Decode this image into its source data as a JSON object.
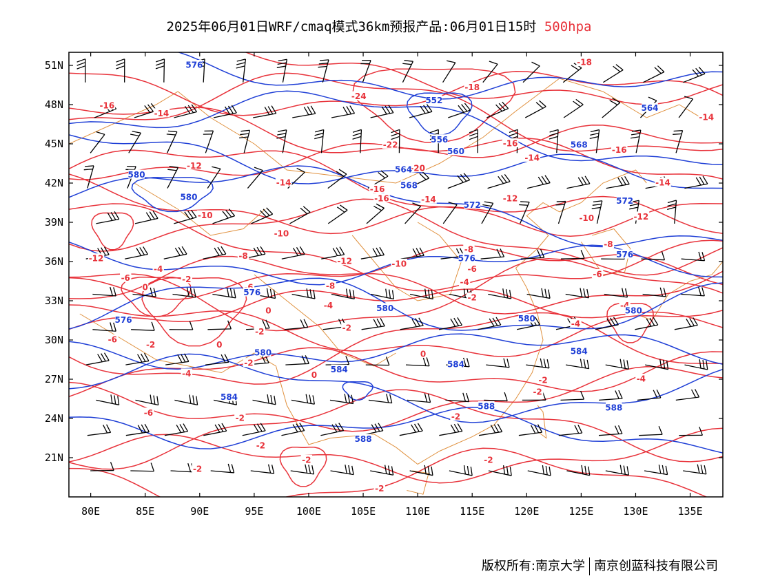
{
  "title": {
    "text": "2025年06月01日WRF/cmaq模式36km预报产品:06月01日15时",
    "level": "500hpa",
    "level_color": "#e8323a"
  },
  "map_data": {
    "lon_range": [
      78,
      138
    ],
    "lat_range": [
      18,
      52
    ],
    "lon_ticks": [
      "80E",
      "85E",
      "90E",
      "95E",
      "100E",
      "105E",
      "110E",
      "115E",
      "120E",
      "125E",
      "130E",
      "135E"
    ],
    "lat_ticks": [
      "21N",
      "24N",
      "27N",
      "30N",
      "33N",
      "36N",
      "39N",
      "42N",
      "45N",
      "48N",
      "51N"
    ],
    "height_contour_color": "#1f3fd6",
    "temperature_contour_color": "#e8323a",
    "boundary_color": "#e0913f",
    "height_labels": [
      {
        "text": "576",
        "lon": 89.5,
        "lat": 51.0
      },
      {
        "text": "552",
        "lon": 111.5,
        "lat": 48.3
      },
      {
        "text": "564",
        "lon": 131.3,
        "lat": 47.7
      },
      {
        "text": "556",
        "lon": 112.0,
        "lat": 45.3
      },
      {
        "text": "560",
        "lon": 113.5,
        "lat": 44.4
      },
      {
        "text": "568",
        "lon": 124.8,
        "lat": 44.9
      },
      {
        "text": "564",
        "lon": 108.7,
        "lat": 43.0
      },
      {
        "text": "580",
        "lon": 84.2,
        "lat": 42.6
      },
      {
        "text": "568",
        "lon": 109.2,
        "lat": 41.8
      },
      {
        "text": "580",
        "lon": 89.0,
        "lat": 40.9
      },
      {
        "text": "572",
        "lon": 115.0,
        "lat": 40.3
      },
      {
        "text": "572",
        "lon": 129.0,
        "lat": 40.6
      },
      {
        "text": "576",
        "lon": 114.5,
        "lat": 36.2
      },
      {
        "text": "576",
        "lon": 129.0,
        "lat": 36.5
      },
      {
        "text": "576",
        "lon": 94.8,
        "lat": 33.6
      },
      {
        "text": "576",
        "lon": 83.0,
        "lat": 31.5
      },
      {
        "text": "580",
        "lon": 107.0,
        "lat": 32.4
      },
      {
        "text": "580",
        "lon": 120.0,
        "lat": 31.6
      },
      {
        "text": "580",
        "lon": 129.8,
        "lat": 32.2
      },
      {
        "text": "580",
        "lon": 95.8,
        "lat": 29.0
      },
      {
        "text": "584",
        "lon": 124.8,
        "lat": 29.1
      },
      {
        "text": "584",
        "lon": 113.5,
        "lat": 28.1
      },
      {
        "text": "584",
        "lon": 102.8,
        "lat": 27.7
      },
      {
        "text": "584",
        "lon": 92.7,
        "lat": 25.6
      },
      {
        "text": "588",
        "lon": 116.3,
        "lat": 24.9
      },
      {
        "text": "588",
        "lon": 128.0,
        "lat": 24.8
      },
      {
        "text": "588",
        "lon": 105.0,
        "lat": 22.4
      }
    ],
    "temperature_labels": [
      {
        "text": "-16",
        "lon": 81.5,
        "lat": 47.9
      },
      {
        "text": "-14",
        "lon": 86.5,
        "lat": 47.3
      },
      {
        "text": "-24",
        "lon": 104.6,
        "lat": 48.6
      },
      {
        "text": "-18",
        "lon": 115.0,
        "lat": 49.3
      },
      {
        "text": "-18",
        "lon": 125.3,
        "lat": 51.2
      },
      {
        "text": "-14",
        "lon": 136.5,
        "lat": 47.0
      },
      {
        "text": "-22",
        "lon": 107.5,
        "lat": 44.9
      },
      {
        "text": "-16",
        "lon": 118.5,
        "lat": 45.0
      },
      {
        "text": "-16",
        "lon": 128.5,
        "lat": 44.5
      },
      {
        "text": "-14",
        "lon": 120.5,
        "lat": 43.9
      },
      {
        "text": "-20",
        "lon": 110.0,
        "lat": 43.1
      },
      {
        "text": "-12",
        "lon": 89.5,
        "lat": 43.3
      },
      {
        "text": "-14",
        "lon": 97.7,
        "lat": 42.0
      },
      {
        "text": "-16",
        "lon": 106.3,
        "lat": 41.5
      },
      {
        "text": "-16",
        "lon": 106.7,
        "lat": 40.8
      },
      {
        "text": "-14",
        "lon": 111.0,
        "lat": 40.7
      },
      {
        "text": "-12",
        "lon": 118.5,
        "lat": 40.8
      },
      {
        "text": "-14",
        "lon": 132.5,
        "lat": 42.0
      },
      {
        "text": "-10",
        "lon": 90.5,
        "lat": 39.5
      },
      {
        "text": "-10",
        "lon": 97.5,
        "lat": 38.1
      },
      {
        "text": "-10",
        "lon": 125.5,
        "lat": 39.3
      },
      {
        "text": "-12",
        "lon": 130.5,
        "lat": 39.4
      },
      {
        "text": "-8",
        "lon": 94.0,
        "lat": 36.4
      },
      {
        "text": "-12",
        "lon": 80.5,
        "lat": 36.2
      },
      {
        "text": "-12",
        "lon": 103.3,
        "lat": 36.0
      },
      {
        "text": "-10",
        "lon": 108.3,
        "lat": 35.8
      },
      {
        "text": "-8",
        "lon": 114.7,
        "lat": 36.9
      },
      {
        "text": "-8",
        "lon": 127.5,
        "lat": 37.3
      },
      {
        "text": "-6",
        "lon": 115.0,
        "lat": 35.4
      },
      {
        "text": "-6",
        "lon": 83.2,
        "lat": 34.7
      },
      {
        "text": "-4",
        "lon": 86.2,
        "lat": 35.4
      },
      {
        "text": "-2",
        "lon": 88.8,
        "lat": 34.6
      },
      {
        "text": "-4",
        "lon": 114.3,
        "lat": 34.4
      },
      {
        "text": "-6",
        "lon": 126.5,
        "lat": 35.0
      },
      {
        "text": "0",
        "lon": 85.0,
        "lat": 34.0
      },
      {
        "text": "-6",
        "lon": 94.5,
        "lat": 34.0
      },
      {
        "text": "-8",
        "lon": 102.0,
        "lat": 34.1
      },
      {
        "text": "-2",
        "lon": 115.0,
        "lat": 33.2
      },
      {
        "text": "-4",
        "lon": 101.8,
        "lat": 32.6
      },
      {
        "text": "-4",
        "lon": 129.0,
        "lat": 32.6
      },
      {
        "text": "0",
        "lon": 96.3,
        "lat": 32.2
      },
      {
        "text": "-2",
        "lon": 95.5,
        "lat": 30.6
      },
      {
        "text": "-2",
        "lon": 103.5,
        "lat": 30.9
      },
      {
        "text": "-4",
        "lon": 124.5,
        "lat": 31.2
      },
      {
        "text": "-6",
        "lon": 82.0,
        "lat": 30.0
      },
      {
        "text": "-2",
        "lon": 85.5,
        "lat": 29.6
      },
      {
        "text": "0",
        "lon": 91.8,
        "lat": 29.6
      },
      {
        "text": "0",
        "lon": 110.5,
        "lat": 28.9
      },
      {
        "text": "-2",
        "lon": 94.5,
        "lat": 28.2
      },
      {
        "text": "-4",
        "lon": 88.8,
        "lat": 27.4
      },
      {
        "text": "0",
        "lon": 100.5,
        "lat": 27.3
      },
      {
        "text": "-2",
        "lon": 121.5,
        "lat": 26.9
      },
      {
        "text": "-4",
        "lon": 130.5,
        "lat": 27.0
      },
      {
        "text": "-2",
        "lon": 121.0,
        "lat": 26.0
      },
      {
        "text": "-6",
        "lon": 85.3,
        "lat": 24.4
      },
      {
        "text": "-2",
        "lon": 93.7,
        "lat": 24.0
      },
      {
        "text": "-2",
        "lon": 113.5,
        "lat": 24.1
      },
      {
        "text": "-2",
        "lon": 95.6,
        "lat": 21.9
      },
      {
        "text": "-2",
        "lon": 89.8,
        "lat": 20.1
      },
      {
        "text": "-2",
        "lon": 99.8,
        "lat": 20.8
      },
      {
        "text": "-2",
        "lon": 116.5,
        "lat": 20.8
      },
      {
        "text": "-2",
        "lon": 106.5,
        "lat": 18.6
      }
    ]
  },
  "footer": {
    "copyright": "版权所有:南京大学",
    "company": "南京创蓝科技有限公司"
  }
}
